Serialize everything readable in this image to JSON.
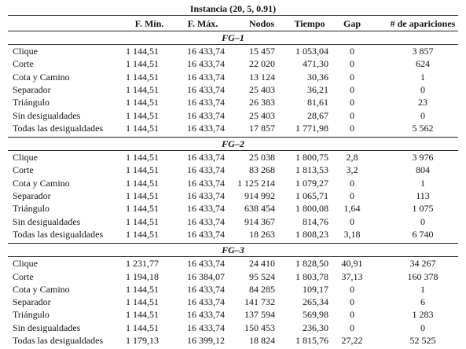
{
  "table": {
    "title": "Instancia (20, 5, 0.91)",
    "columns": [
      "",
      "F. Mín.",
      "F. Máx.",
      "Nodos",
      "Tiempo",
      "Gap",
      "# de apariciones"
    ],
    "sections": [
      {
        "label": "FG–1",
        "rows": [
          [
            "Clique",
            "1 144,51",
            "16 433,74",
            "15 457",
            "1 053,04",
            "0",
            "3 857"
          ],
          [
            "Corte",
            "1 144,51",
            "16 433,74",
            "22 020",
            "471,30",
            "0",
            "624"
          ],
          [
            "Cota y Camino",
            "1 144,51",
            "16 433,74",
            "13 124",
            "30,36",
            "0",
            "1"
          ],
          [
            "Separador",
            "1 144,51",
            "16 433,74",
            "25 403",
            "36,21",
            "0",
            "0"
          ],
          [
            "Triángulo",
            "1 144,51",
            "16 433,74",
            "26 383",
            "81,61",
            "0",
            "23"
          ],
          [
            "Sin desigualdades",
            "1 144,51",
            "16 433,74",
            "25 403",
            "28,67",
            "0",
            "0"
          ],
          [
            "Todas las desigualdades",
            "1 144,51",
            "16 433,74",
            "17 857",
            "1 771,98",
            "0",
            "5 562"
          ]
        ]
      },
      {
        "label": "FG–2",
        "rows": [
          [
            "Clique",
            "1 144,51",
            "16 433,74",
            "25 038",
            "1 800,75",
            "2,8",
            "3 976"
          ],
          [
            "Corte",
            "1 144,51",
            "16 433,74",
            "83 268",
            "1 813,53",
            "3,2",
            "804"
          ],
          [
            "Cota y Camino",
            "1 144,51",
            "16 433,74",
            "1 125 214",
            "1 079,27",
            "0",
            "1"
          ],
          [
            "Separador",
            "1 144,51",
            "16 433,74",
            "914 992",
            "1 065,71",
            "0",
            "113"
          ],
          [
            "Triángulo",
            "1 144,51",
            "16 433,74",
            "638 454",
            "1 800,08",
            "1,64",
            "1 075"
          ],
          [
            "Sin desigualdades",
            "1 144,51",
            "16 433,74",
            "914 367",
            "814,76",
            "0",
            "0"
          ],
          [
            "Todas las desigualdades",
            "1 144,51",
            "16 433,74",
            "18 263",
            "1 808,23",
            "3,18",
            "6 740"
          ]
        ]
      },
      {
        "label": "FG–3",
        "rows": [
          [
            "Clique",
            "1 231,77",
            "16 433,74",
            "24 410",
            "1 828,50",
            "40,91",
            "34 267"
          ],
          [
            "Corte",
            "1 194,18",
            "16 384,07",
            "95 524",
            "1 803,78",
            "37,13",
            "160 378"
          ],
          [
            "Cota y Camino",
            "1 144,51",
            "16 433,74",
            "84 285",
            "109,17",
            "0",
            "1"
          ],
          [
            "Separador",
            "1 144,51",
            "16 433,74",
            "141 732",
            "265,34",
            "0",
            "6"
          ],
          [
            "Triángulo",
            "1 144,51",
            "16 433,74",
            "137 594",
            "569,98",
            "0",
            "1 283"
          ],
          [
            "Sin desigualdades",
            "1 144,51",
            "16 433,74",
            "150 453",
            "236,30",
            "0",
            "0"
          ],
          [
            "Todas las desigualdades",
            "1 179,13",
            "16 399,12",
            "18 824",
            "1 815,76",
            "27,22",
            "52 525"
          ]
        ]
      }
    ]
  }
}
